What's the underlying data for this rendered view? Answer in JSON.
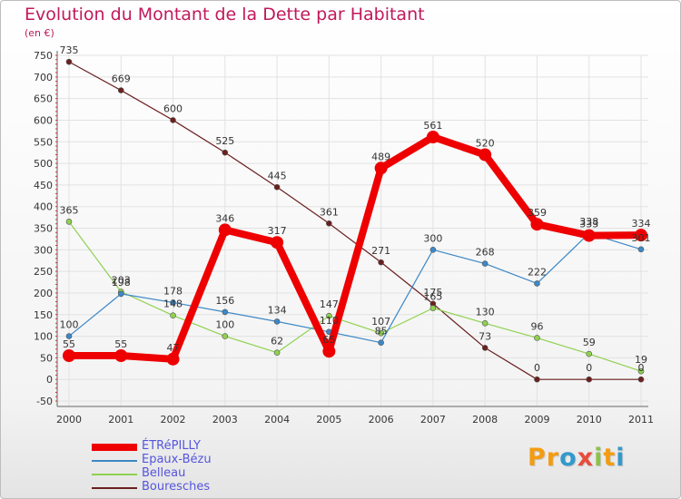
{
  "header": {
    "title": "Evolution du Montant de la Dette par Habitant",
    "unit": "(en €)"
  },
  "logo": {
    "letters": [
      "P",
      "r",
      "o",
      "x",
      "i",
      "t",
      "i"
    ],
    "colors": [
      "#f39c12",
      "#f39c12",
      "#3399cc",
      "#e74c3c",
      "#8bc34a",
      "#f39c12",
      "#3399cc"
    ]
  },
  "chart_data": {
    "type": "line",
    "title": "Evolution du Montant de la Dette par Habitant",
    "ylabel": "(en €)",
    "xlabel": "",
    "x": [
      "2000",
      "2001",
      "2002",
      "2003",
      "2004",
      "2005",
      "2006",
      "2007",
      "2008",
      "2009",
      "2010",
      "2011"
    ],
    "yticks": [
      "-50",
      "0",
      "50",
      "100",
      "150",
      "200",
      "250",
      "300",
      "350",
      "400",
      "450",
      "500",
      "550",
      "600",
      "650",
      "700",
      "750"
    ],
    "ylim": [
      -50,
      750
    ],
    "grid": true,
    "legend_position": "bottom-left",
    "series": [
      {
        "name": "Bouresches",
        "color": "#6b1f1f",
        "values": [
          735,
          669,
          600,
          525,
          445,
          361,
          271,
          175,
          73,
          0,
          0,
          0
        ],
        "labels": [
          "735",
          "669",
          "600",
          "525",
          "445",
          "361",
          "271",
          "175",
          "73",
          "0",
          "0",
          "0"
        ]
      },
      {
        "name": "Belleau",
        "color": "#8fd14f",
        "values": [
          365,
          203,
          148,
          100,
          62,
          147,
          107,
          165,
          130,
          96,
          59,
          19
        ],
        "labels": [
          "365",
          "203",
          "148",
          "100",
          "62",
          "147",
          "107",
          "165",
          "130",
          "96",
          "59",
          "19"
        ]
      },
      {
        "name": "Epaux-Bézu",
        "color": "#3d88c6",
        "values": [
          100,
          198,
          178,
          156,
          134,
          110,
          85,
          300,
          268,
          222,
          338,
          301
        ],
        "labels": [
          "100",
          "198",
          "178",
          "156",
          "134",
          "110",
          "85",
          "300",
          "268",
          "222",
          "338",
          "301"
        ]
      },
      {
        "name": "ÉTRéPILLY",
        "color": "#ee0000",
        "values": [
          55,
          55,
          47,
          346,
          317,
          65,
          489,
          561,
          520,
          359,
          333,
          334
        ],
        "labels": [
          "55",
          "55",
          "47",
          "346",
          "317",
          "65",
          "489",
          "561",
          "520",
          "359",
          "333",
          "334"
        ]
      }
    ]
  },
  "legend": {
    "items": [
      {
        "label": "ÉTRéPILLY",
        "color": "#ee0000",
        "thick": true
      },
      {
        "label": "Epaux-Bézu",
        "color": "#3d88c6",
        "thick": false
      },
      {
        "label": "Belleau",
        "color": "#8fd14f",
        "thick": false
      },
      {
        "label": "Bouresches",
        "color": "#6b1f1f",
        "thick": false
      }
    ]
  }
}
